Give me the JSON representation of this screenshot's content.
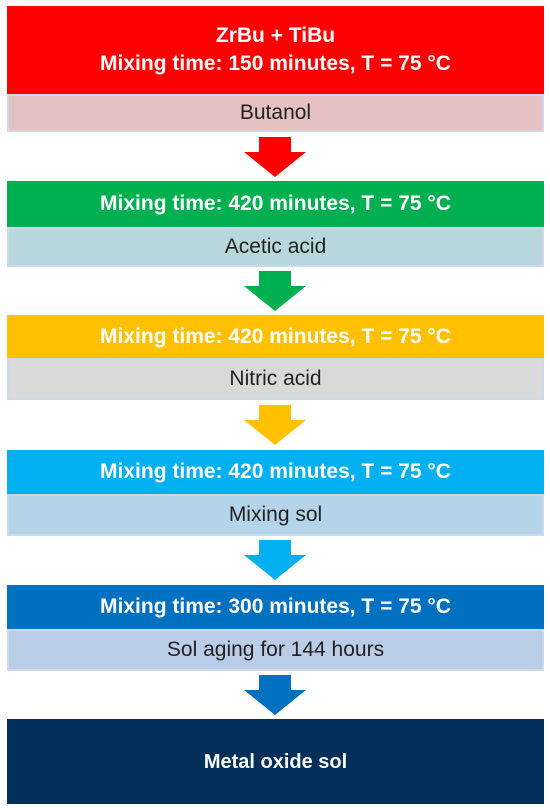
{
  "colors": {
    "red": "#ff0000",
    "green": "#00b050",
    "amber": "#ffc000",
    "sky": "#00b0f0",
    "blue": "#0070c0",
    "navy": "#002f5a",
    "butanol_bg": "#e6c1c2",
    "acetic_bg": "#b7d7dc",
    "nitric_bg": "#d9d9d9",
    "mixsol_bg": "#b4d4ea",
    "aging_bg": "#bacde6"
  },
  "steps": [
    {
      "title_line1": "ZrBu + TiBu",
      "title_line2": "Mixing time: 150 minutes, T = 75 °C",
      "reagent": "Butanol"
    },
    {
      "title": "Mixing time: 420 minutes, T = 75 °C",
      "reagent": "Acetic acid"
    },
    {
      "title": "Mixing time: 420 minutes, T = 75 °C",
      "reagent": "Nitric acid"
    },
    {
      "title": "Mixing time: 420 minutes, T = 75 °C",
      "reagent": "Mixing sol"
    },
    {
      "title": "Mixing time: 300 minutes, T = 75 °C",
      "reagent": "Sol aging for 144 hours"
    }
  ],
  "final": {
    "label": "Metal oxide sol"
  }
}
